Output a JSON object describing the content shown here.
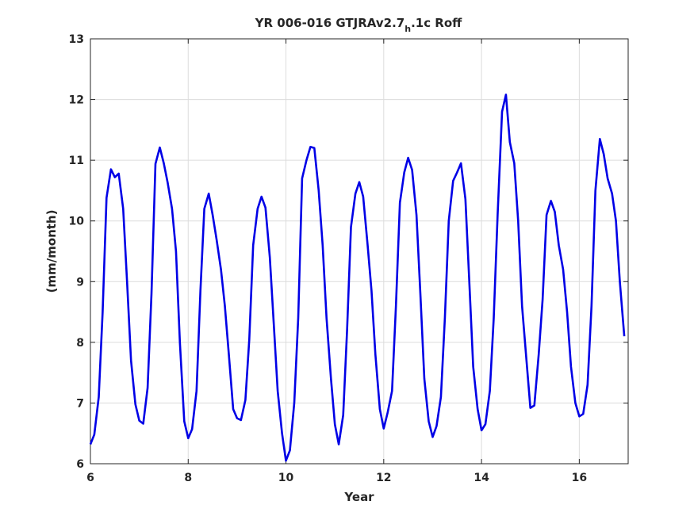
{
  "chart_data": {
    "type": "line",
    "title_main": "YR 006-016 GTJRAv2.7",
    "title_sub": "h",
    "title_end": ".1c Roff",
    "xlabel": "Year",
    "ylabel": "(mm/month)",
    "xlim": [
      6,
      17
    ],
    "ylim": [
      6,
      13
    ],
    "xticks": [
      6,
      8,
      10,
      12,
      14,
      16
    ],
    "yticks": [
      6,
      7,
      8,
      9,
      10,
      11,
      12,
      13
    ],
    "grid": true,
    "line_color": "#0000e6",
    "series": [
      {
        "x": [
          6.0,
          6.08,
          6.17,
          6.25,
          6.33,
          6.42,
          6.5,
          6.58,
          6.67,
          6.75,
          6.83,
          6.92,
          7.0,
          7.08,
          7.17,
          7.25,
          7.33,
          7.42,
          7.5,
          7.58,
          7.67,
          7.75,
          7.83,
          7.92,
          8.0,
          8.08,
          8.17,
          8.25,
          8.33,
          8.42,
          8.5,
          8.58,
          8.67,
          8.75,
          8.83,
          8.92,
          9.0,
          9.08,
          9.17,
          9.25,
          9.33,
          9.42,
          9.5,
          9.58,
          9.67,
          9.75,
          9.83,
          9.92,
          10.0,
          10.08,
          10.17,
          10.25,
          10.33,
          10.42,
          10.5,
          10.58,
          10.67,
          10.75,
          10.83,
          10.92,
          11.0,
          11.08,
          11.17,
          11.25,
          11.33,
          11.42,
          11.5,
          11.58,
          11.67,
          11.75,
          11.83,
          11.92,
          12.0,
          12.08,
          12.17,
          12.25,
          12.33,
          12.42,
          12.5,
          12.58,
          12.67,
          12.75,
          12.83,
          12.92,
          13.0,
          13.08,
          13.17,
          13.25,
          13.33,
          13.42,
          13.5,
          13.58,
          13.67,
          13.75,
          13.83,
          13.92,
          14.0,
          14.08,
          14.17,
          14.25,
          14.33,
          14.42,
          14.5,
          14.58,
          14.67,
          14.75,
          14.83,
          14.92,
          15.0,
          15.08,
          15.17,
          15.25,
          15.33,
          15.42,
          15.5,
          15.58,
          15.67,
          15.75,
          15.83,
          15.92,
          16.0,
          16.08,
          16.17,
          16.25,
          16.33,
          16.42,
          16.5,
          16.58,
          16.67,
          16.75,
          16.83,
          16.92
        ],
        "y": [
          6.32,
          6.48,
          7.1,
          8.5,
          10.38,
          10.85,
          10.72,
          10.78,
          10.2,
          9.0,
          7.7,
          6.98,
          6.71,
          6.66,
          7.25,
          8.8,
          10.94,
          11.21,
          10.95,
          10.63,
          10.2,
          9.5,
          8.0,
          6.7,
          6.42,
          6.57,
          7.2,
          8.85,
          10.2,
          10.45,
          10.1,
          9.7,
          9.2,
          8.6,
          7.82,
          6.9,
          6.75,
          6.72,
          7.05,
          8.05,
          9.6,
          10.2,
          10.4,
          10.22,
          9.4,
          8.32,
          7.2,
          6.5,
          6.05,
          6.22,
          7.0,
          8.4,
          10.7,
          11.0,
          11.22,
          11.2,
          10.5,
          9.6,
          8.4,
          7.4,
          6.65,
          6.32,
          6.8,
          8.2,
          9.9,
          10.45,
          10.64,
          10.4,
          9.6,
          8.85,
          7.8,
          6.9,
          6.58,
          6.84,
          7.2,
          8.6,
          10.3,
          10.8,
          11.04,
          10.84,
          10.1,
          8.8,
          7.4,
          6.7,
          6.44,
          6.62,
          7.1,
          8.4,
          10.0,
          10.66,
          10.8,
          10.95,
          10.36,
          9.0,
          7.6,
          6.9,
          6.55,
          6.65,
          7.2,
          8.4,
          10.1,
          11.8,
          12.08,
          11.3,
          10.95,
          10.0,
          8.6,
          7.7,
          6.92,
          6.96,
          7.8,
          8.7,
          10.1,
          10.33,
          10.15,
          9.6,
          9.2,
          8.5,
          7.6,
          7.0,
          6.78,
          6.82,
          7.3,
          8.6,
          10.5,
          11.35,
          11.1,
          10.7,
          10.45,
          10.0,
          9.0,
          8.1
        ]
      }
    ]
  }
}
